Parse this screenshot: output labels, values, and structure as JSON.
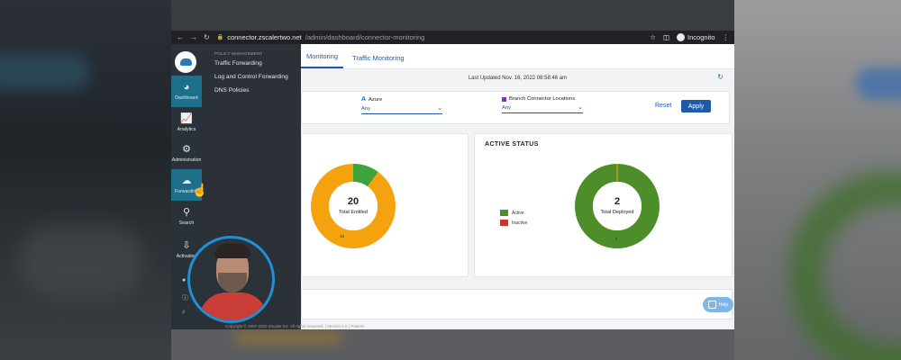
{
  "browser": {
    "url_host": "connector.zscalertwo.net",
    "url_path": "/admin/dashboard/connector-monitoring",
    "incognito_label": "Incognito"
  },
  "rail": {
    "items": [
      {
        "label": "Dashboard",
        "icon": "gauge-icon"
      },
      {
        "label": "Analytics",
        "icon": "line-chart-icon"
      },
      {
        "label": "Administration",
        "icon": "gears-icon"
      },
      {
        "label": "Forwarding",
        "icon": "cloud-icon"
      },
      {
        "label": "Search",
        "icon": "search-icon"
      },
      {
        "label": "Activation",
        "icon": "download-icon"
      }
    ]
  },
  "flyout": {
    "header": "POLICY MANAGEMENT",
    "links": [
      "Traffic Forwarding",
      "Log and Control Forwarding",
      "DNS Policies"
    ]
  },
  "tabs": [
    "Monitoring",
    "Traffic Monitoring"
  ],
  "last_updated": "Last Updated Nov. 16, 2022 08:58:46 am",
  "filters": {
    "azure": {
      "title": "Azure",
      "value": "Any"
    },
    "branch": {
      "title": "Branch Connector Locations",
      "value": "Any"
    },
    "reset_label": "Reset",
    "apply_label": "Apply"
  },
  "cards": {
    "entitled": {
      "total": "20",
      "total_label": "Total Entitled",
      "segment_label": "18"
    },
    "status": {
      "title": "ACTIVE STATUS",
      "total": "2",
      "total_label": "Total Deployed",
      "segment_label": "2",
      "legend": [
        {
          "label": "Active",
          "color": "#4e8e2a"
        },
        {
          "label": "Inactive",
          "color": "#d32f2f"
        }
      ]
    }
  },
  "footer": "Copyright © 2007-2022 Zscaler Inc. All rights reserved. | Version 1.0 | Patents",
  "help_label": "Help",
  "colors": {
    "accent": "#1e5aa8",
    "orange": "#f5a20f",
    "green": "#4e8e2a",
    "green_light": "#3da33a"
  }
}
